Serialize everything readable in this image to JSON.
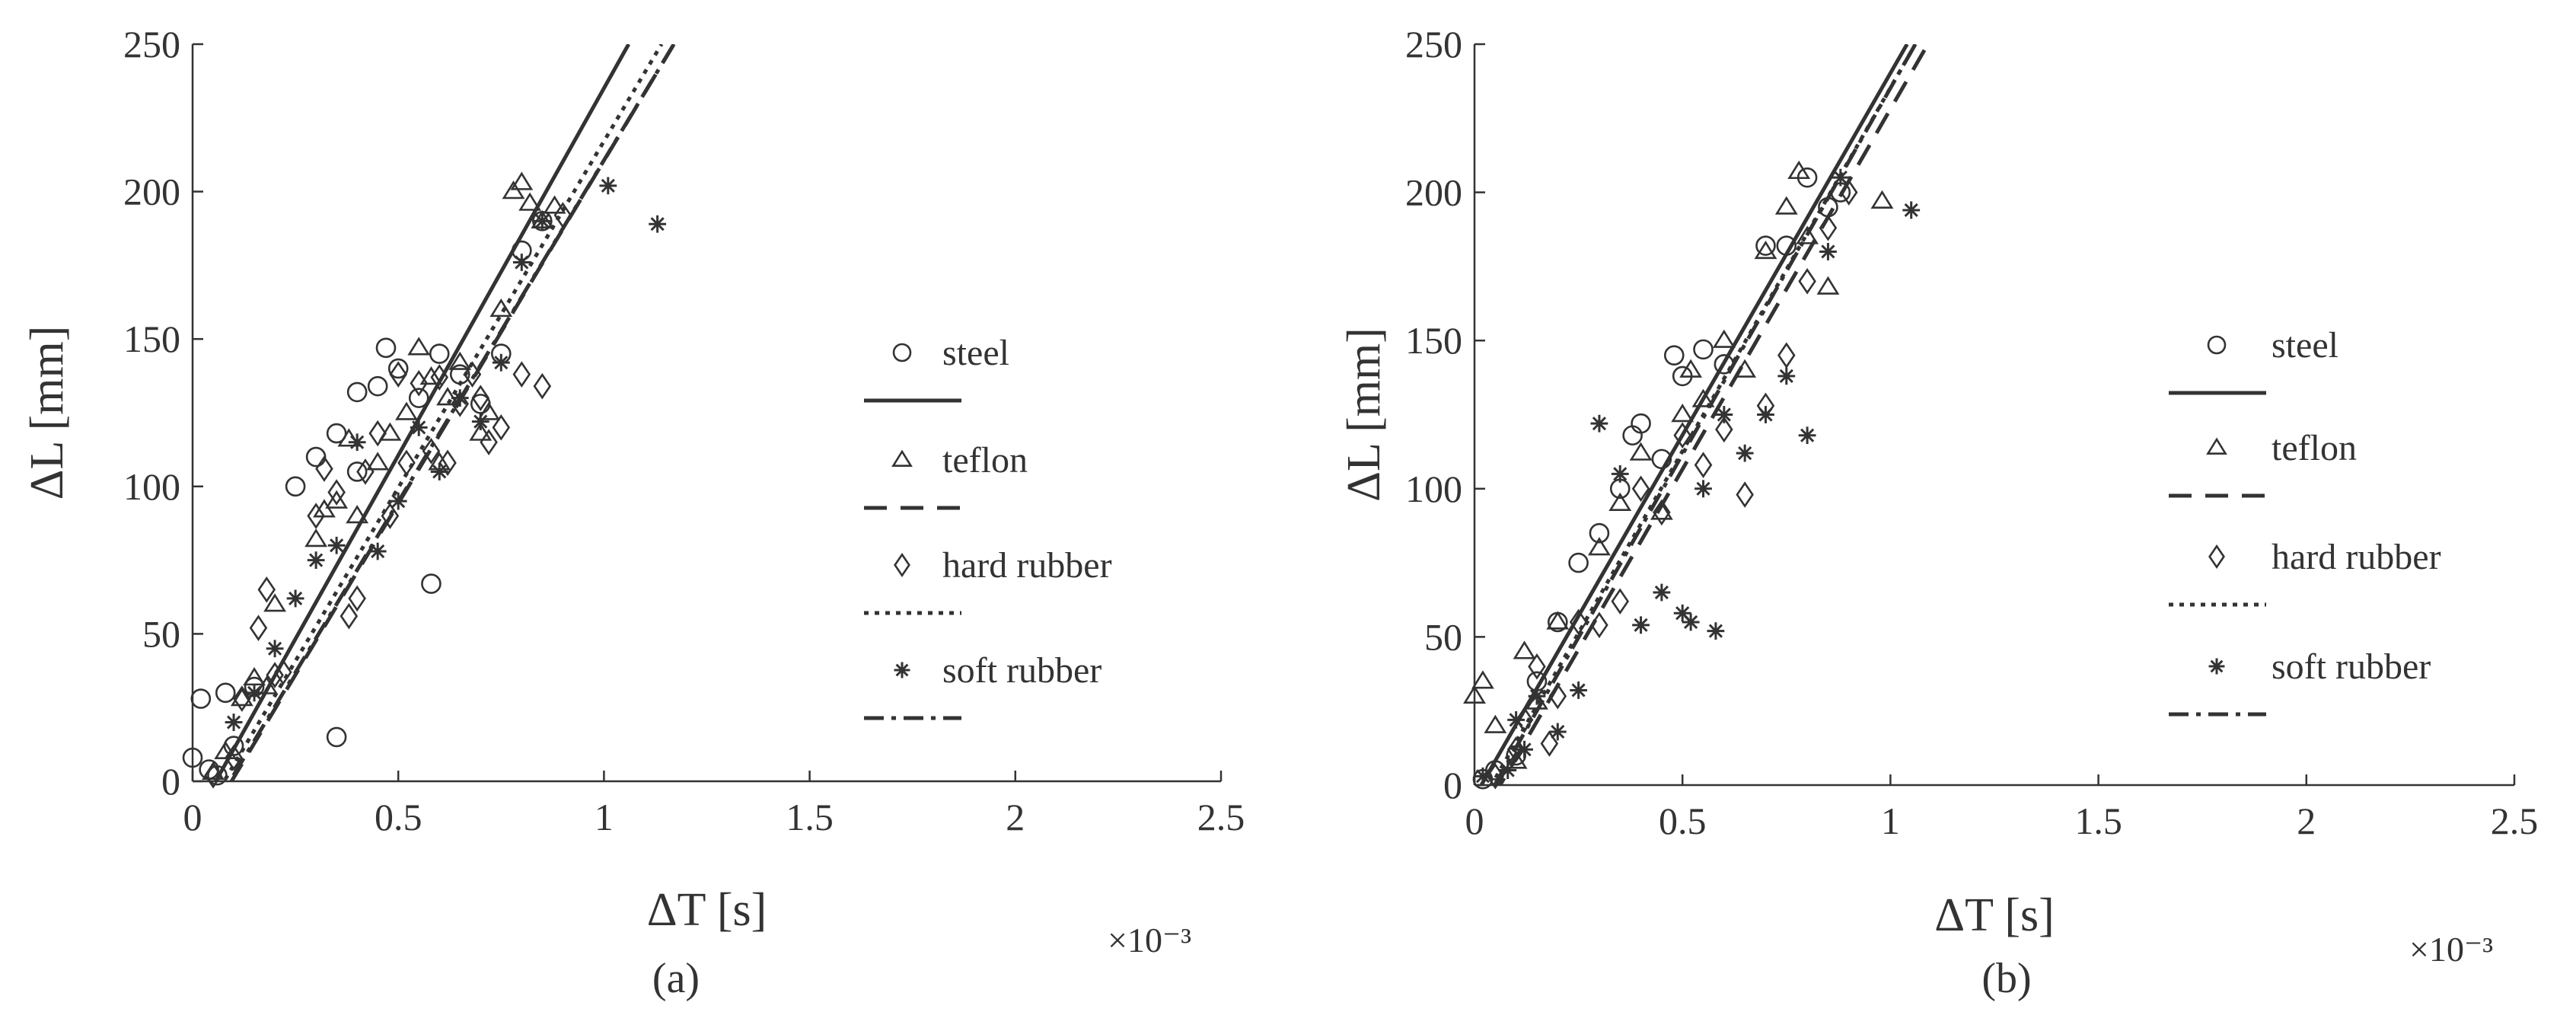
{
  "chart_data": [
    {
      "type": "scatter",
      "caption": "(a)",
      "xlabel": "ΔT [s]",
      "ylabel": "ΔL [mm]",
      "x_multiplier_label": "×10⁻³",
      "xlim": [
        0,
        2.5
      ],
      "ylim": [
        0,
        250
      ],
      "x_ticks": [
        0,
        0.5,
        1,
        1.5,
        2,
        2.5
      ],
      "x_tick_labels": [
        "0",
        "0.5",
        "1",
        "1.5",
        "2",
        "2.5"
      ],
      "y_ticks": [
        0,
        50,
        100,
        150,
        200,
        250
      ],
      "y_tick_labels": [
        "0",
        "50",
        "100",
        "150",
        "200",
        "250"
      ],
      "grid": false,
      "legend_position": "right",
      "series": [
        {
          "name": "steel",
          "marker": "circle",
          "line_style": "solid",
          "points": [
            [
              0,
              8
            ],
            [
              0.02,
              28
            ],
            [
              0.04,
              4
            ],
            [
              0.06,
              2
            ],
            [
              0.08,
              30
            ],
            [
              0.1,
              12
            ],
            [
              0.15,
              32
            ],
            [
              0.25,
              100
            ],
            [
              0.3,
              110
            ],
            [
              0.35,
              15
            ],
            [
              0.35,
              118
            ],
            [
              0.4,
              105
            ],
            [
              0.4,
              132
            ],
            [
              0.45,
              134
            ],
            [
              0.47,
              147
            ],
            [
              0.5,
              140
            ],
            [
              0.55,
              130
            ],
            [
              0.58,
              67
            ],
            [
              0.6,
              145
            ],
            [
              0.65,
              138
            ],
            [
              0.7,
              128
            ],
            [
              0.75,
              145
            ],
            [
              0.8,
              180
            ],
            [
              0.85,
              190
            ]
          ],
          "fit": [
            [
              0,
              -14
            ],
            [
              1.06,
              250
            ]
          ]
        },
        {
          "name": "teflon",
          "marker": "triangle",
          "line_style": "dashed",
          "points": [
            [
              0.05,
              3
            ],
            [
              0.08,
              10
            ],
            [
              0.12,
              28
            ],
            [
              0.15,
              35
            ],
            [
              0.18,
              32
            ],
            [
              0.2,
              60
            ],
            [
              0.3,
              82
            ],
            [
              0.32,
              92
            ],
            [
              0.35,
              95
            ],
            [
              0.38,
              116
            ],
            [
              0.4,
              90
            ],
            [
              0.45,
              108
            ],
            [
              0.48,
              118
            ],
            [
              0.52,
              125
            ],
            [
              0.55,
              147
            ],
            [
              0.58,
              137
            ],
            [
              0.6,
              108
            ],
            [
              0.62,
              130
            ],
            [
              0.65,
              142
            ],
            [
              0.7,
              118
            ],
            [
              0.72,
              125
            ],
            [
              0.75,
              160
            ],
            [
              0.78,
              200
            ],
            [
              0.8,
              203
            ],
            [
              0.82,
              196
            ],
            [
              0.85,
              190
            ],
            [
              0.88,
              195
            ]
          ],
          "fit": [
            [
              0,
              -22
            ],
            [
              1.17,
              250
            ]
          ]
        },
        {
          "name": "hard rubber",
          "marker": "diamond",
          "line_style": "dotted",
          "points": [
            [
              0.05,
              2
            ],
            [
              0.1,
              8
            ],
            [
              0.12,
              28
            ],
            [
              0.16,
              52
            ],
            [
              0.18,
              65
            ],
            [
              0.2,
              36
            ],
            [
              0.22,
              37
            ],
            [
              0.3,
              90
            ],
            [
              0.32,
              106
            ],
            [
              0.35,
              98
            ],
            [
              0.38,
              56
            ],
            [
              0.4,
              62
            ],
            [
              0.42,
              105
            ],
            [
              0.45,
              118
            ],
            [
              0.48,
              90
            ],
            [
              0.5,
              138
            ],
            [
              0.52,
              108
            ],
            [
              0.55,
              135
            ],
            [
              0.58,
              112
            ],
            [
              0.6,
              137
            ],
            [
              0.62,
              108
            ],
            [
              0.65,
              128
            ],
            [
              0.68,
              138
            ],
            [
              0.7,
              130
            ],
            [
              0.72,
              115
            ],
            [
              0.75,
              120
            ],
            [
              0.8,
              138
            ],
            [
              0.85,
              134
            ],
            [
              0.9,
              192
            ]
          ],
          "fit": [
            [
              0,
              -18
            ],
            [
              1.14,
              250
            ]
          ]
        },
        {
          "name": "soft rubber",
          "marker": "asterisk",
          "line_style": "dash-dot",
          "points": [
            [
              0.1,
              20
            ],
            [
              0.15,
              30
            ],
            [
              0.2,
              45
            ],
            [
              0.25,
              62
            ],
            [
              0.3,
              75
            ],
            [
              0.35,
              80
            ],
            [
              0.4,
              115
            ],
            [
              0.45,
              78
            ],
            [
              0.5,
              95
            ],
            [
              0.55,
              120
            ],
            [
              0.6,
              105
            ],
            [
              0.65,
              130
            ],
            [
              0.7,
              122
            ],
            [
              0.75,
              142
            ],
            [
              0.8,
              176
            ],
            [
              0.85,
              190
            ],
            [
              1.01,
              202
            ],
            [
              1.13,
              189
            ]
          ],
          "fit": [
            [
              0,
              -21
            ],
            [
              1.17,
              250
            ]
          ]
        }
      ]
    },
    {
      "type": "scatter",
      "caption": "(b)",
      "xlabel": "ΔT [s]",
      "ylabel": "ΔL [mm]",
      "x_multiplier_label": "×10⁻³",
      "xlim": [
        0,
        2.5
      ],
      "ylim": [
        0,
        250
      ],
      "x_ticks": [
        0,
        0.5,
        1,
        1.5,
        2,
        2.5
      ],
      "x_tick_labels": [
        "0",
        "0.5",
        "1",
        "1.5",
        "2",
        "2.5"
      ],
      "y_ticks": [
        0,
        50,
        100,
        150,
        200,
        250
      ],
      "y_tick_labels": [
        "0",
        "50",
        "100",
        "150",
        "200",
        "250"
      ],
      "grid": false,
      "legend_position": "right",
      "series": [
        {
          "name": "steel",
          "marker": "circle",
          "line_style": "solid",
          "points": [
            [
              0.02,
              2
            ],
            [
              0.05,
              5
            ],
            [
              0.1,
              10
            ],
            [
              0.15,
              35
            ],
            [
              0.2,
              55
            ],
            [
              0.25,
              75
            ],
            [
              0.3,
              85
            ],
            [
              0.35,
              100
            ],
            [
              0.38,
              118
            ],
            [
              0.4,
              122
            ],
            [
              0.45,
              110
            ],
            [
              0.48,
              145
            ],
            [
              0.5,
              138
            ],
            [
              0.55,
              147
            ],
            [
              0.6,
              142
            ],
            [
              0.7,
              182
            ],
            [
              0.75,
              182
            ],
            [
              0.8,
              205
            ],
            [
              0.85,
              195
            ],
            [
              0.88,
              200
            ]
          ],
          "fit": [
            [
              0,
              -4
            ],
            [
              1.04,
              250
            ]
          ]
        },
        {
          "name": "teflon",
          "marker": "triangle",
          "line_style": "dashed",
          "points": [
            [
              0,
              30
            ],
            [
              0.02,
              35
            ],
            [
              0.05,
              20
            ],
            [
              0.1,
              8
            ],
            [
              0.12,
              45
            ],
            [
              0.15,
              28
            ],
            [
              0.2,
              55
            ],
            [
              0.3,
              80
            ],
            [
              0.35,
              95
            ],
            [
              0.4,
              112
            ],
            [
              0.45,
              92
            ],
            [
              0.5,
              125
            ],
            [
              0.52,
              140
            ],
            [
              0.55,
              130
            ],
            [
              0.6,
              150
            ],
            [
              0.65,
              140
            ],
            [
              0.7,
              180
            ],
            [
              0.75,
              195
            ],
            [
              0.78,
              207
            ],
            [
              0.8,
              185
            ],
            [
              0.85,
              168
            ],
            [
              0.98,
              197
            ]
          ],
          "fit": [
            [
              0,
              -15
            ],
            [
              1.09,
              250
            ]
          ]
        },
        {
          "name": "hard rubber",
          "marker": "diamond",
          "line_style": "dotted",
          "points": [
            [
              0.05,
              3
            ],
            [
              0.1,
              12
            ],
            [
              0.12,
              22
            ],
            [
              0.15,
              40
            ],
            [
              0.18,
              14
            ],
            [
              0.2,
              30
            ],
            [
              0.25,
              55
            ],
            [
              0.3,
              54
            ],
            [
              0.35,
              62
            ],
            [
              0.4,
              100
            ],
            [
              0.45,
              92
            ],
            [
              0.5,
              118
            ],
            [
              0.55,
              108
            ],
            [
              0.6,
              120
            ],
            [
              0.65,
              98
            ],
            [
              0.7,
              128
            ],
            [
              0.75,
              145
            ],
            [
              0.8,
              170
            ],
            [
              0.85,
              188
            ],
            [
              0.9,
              200
            ]
          ],
          "fit": [
            [
              0,
              -10
            ],
            [
              1.06,
              250
            ]
          ]
        },
        {
          "name": "soft rubber",
          "marker": "asterisk",
          "line_style": "dash-dot",
          "points": [
            [
              0.02,
              3
            ],
            [
              0.08,
              5
            ],
            [
              0.1,
              22
            ],
            [
              0.12,
              12
            ],
            [
              0.15,
              30
            ],
            [
              0.2,
              18
            ],
            [
              0.25,
              32
            ],
            [
              0.3,
              122
            ],
            [
              0.35,
              105
            ],
            [
              0.4,
              54
            ],
            [
              0.45,
              65
            ],
            [
              0.5,
              58
            ],
            [
              0.52,
              55
            ],
            [
              0.55,
              100
            ],
            [
              0.58,
              52
            ],
            [
              0.6,
              125
            ],
            [
              0.65,
              112
            ],
            [
              0.7,
              125
            ],
            [
              0.75,
              138
            ],
            [
              0.8,
              118
            ],
            [
              0.85,
              180
            ],
            [
              0.88,
              205
            ],
            [
              1.05,
              194
            ]
          ],
          "fit": [
            [
              0,
              -12
            ],
            [
              1.06,
              250
            ]
          ]
        }
      ]
    }
  ]
}
